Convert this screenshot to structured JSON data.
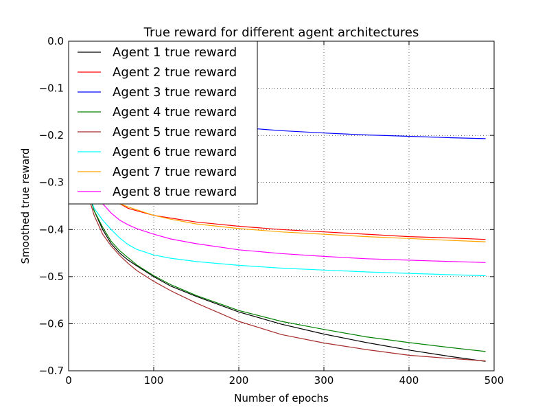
{
  "chart_data": {
    "type": "line",
    "title": "True reward for different agent architectures",
    "xlabel": "Number of epochs",
    "ylabel": "Smoothed true reward",
    "xlim": [
      0,
      500
    ],
    "ylim": [
      -0.7,
      0.0
    ],
    "xticks": [
      0,
      100,
      200,
      300,
      400,
      500
    ],
    "xtick_labels": [
      "0",
      "100",
      "200",
      "300",
      "400",
      "500"
    ],
    "yticks": [
      0.0,
      -0.1,
      -0.2,
      -0.3,
      -0.4,
      -0.5,
      -0.6,
      -0.7
    ],
    "ytick_labels": [
      "0.0",
      "−0.1",
      "−0.2",
      "−0.3",
      "−0.4",
      "−0.5",
      "−0.6",
      "−0.7"
    ],
    "grid": true,
    "legend_position": "upper-left",
    "series": [
      {
        "name": "Agent 1 true reward",
        "color": "#000000",
        "x": [
          20,
          25,
          30,
          40,
          50,
          60,
          70,
          80,
          100,
          120,
          150,
          200,
          250,
          300,
          350,
          400,
          450,
          490
        ],
        "y": [
          -0.29,
          -0.33,
          -0.36,
          -0.4,
          -0.43,
          -0.45,
          -0.465,
          -0.477,
          -0.5,
          -0.52,
          -0.542,
          -0.575,
          -0.601,
          -0.622,
          -0.64,
          -0.656,
          -0.67,
          -0.68
        ]
      },
      {
        "name": "Agent 2 true reward",
        "color": "#ff0000",
        "x": [
          40,
          50,
          60,
          70,
          80,
          100,
          150,
          200,
          250,
          300,
          350,
          400,
          450,
          490
        ],
        "y": [
          -0.3,
          -0.325,
          -0.345,
          -0.355,
          -0.36,
          -0.37,
          -0.384,
          -0.393,
          -0.4,
          -0.405,
          -0.41,
          -0.415,
          -0.418,
          -0.421
        ]
      },
      {
        "name": "Agent 3 true reward",
        "color": "#0000ff",
        "x": [
          200,
          220,
          250,
          300,
          350,
          400,
          450,
          490
        ],
        "y": [
          -0.183,
          -0.186,
          -0.19,
          -0.195,
          -0.199,
          -0.202,
          -0.205,
          -0.207
        ]
      },
      {
        "name": "Agent 4 true reward",
        "color": "#008000",
        "x": [
          20,
          25,
          30,
          40,
          50,
          60,
          70,
          80,
          100,
          120,
          150,
          200,
          250,
          300,
          350,
          400,
          450,
          490
        ],
        "y": [
          -0.29,
          -0.33,
          -0.36,
          -0.395,
          -0.425,
          -0.445,
          -0.46,
          -0.475,
          -0.498,
          -0.517,
          -0.54,
          -0.572,
          -0.595,
          -0.612,
          -0.628,
          -0.64,
          -0.651,
          -0.659
        ]
      },
      {
        "name": "Agent 5 true reward",
        "color": "#a52a2a",
        "x": [
          20,
          25,
          30,
          40,
          50,
          60,
          70,
          80,
          100,
          120,
          150,
          200,
          250,
          300,
          350,
          400,
          450,
          490
        ],
        "y": [
          -0.29,
          -0.34,
          -0.37,
          -0.41,
          -0.435,
          -0.455,
          -0.472,
          -0.487,
          -0.51,
          -0.53,
          -0.556,
          -0.595,
          -0.623,
          -0.641,
          -0.655,
          -0.667,
          -0.674,
          -0.679
        ]
      },
      {
        "name": "Agent 6 true reward",
        "color": "#00ffff",
        "x": [
          20,
          25,
          30,
          40,
          50,
          60,
          70,
          80,
          100,
          120,
          150,
          200,
          250,
          300,
          350,
          400,
          450,
          490
        ],
        "y": [
          -0.29,
          -0.33,
          -0.355,
          -0.38,
          -0.4,
          -0.418,
          -0.432,
          -0.442,
          -0.454,
          -0.461,
          -0.468,
          -0.476,
          -0.482,
          -0.486,
          -0.49,
          -0.493,
          -0.496,
          -0.498
        ]
      },
      {
        "name": "Agent 7 true reward",
        "color": "#ffa500",
        "x": [
          60,
          70,
          80,
          90,
          100,
          120,
          150,
          200,
          250,
          300,
          350,
          400,
          450,
          490
        ],
        "y": [
          -0.345,
          -0.352,
          -0.358,
          -0.364,
          -0.37,
          -0.378,
          -0.388,
          -0.398,
          -0.405,
          -0.41,
          -0.415,
          -0.419,
          -0.423,
          -0.426
        ]
      },
      {
        "name": "Agent 8 true reward",
        "color": "#ff00ff",
        "x": [
          35,
          40,
          50,
          60,
          70,
          80,
          100,
          120,
          150,
          200,
          250,
          300,
          350,
          400,
          450,
          490
        ],
        "y": [
          -0.33,
          -0.345,
          -0.365,
          -0.38,
          -0.39,
          -0.398,
          -0.41,
          -0.42,
          -0.43,
          -0.443,
          -0.451,
          -0.457,
          -0.462,
          -0.465,
          -0.468,
          -0.47
        ]
      }
    ]
  }
}
